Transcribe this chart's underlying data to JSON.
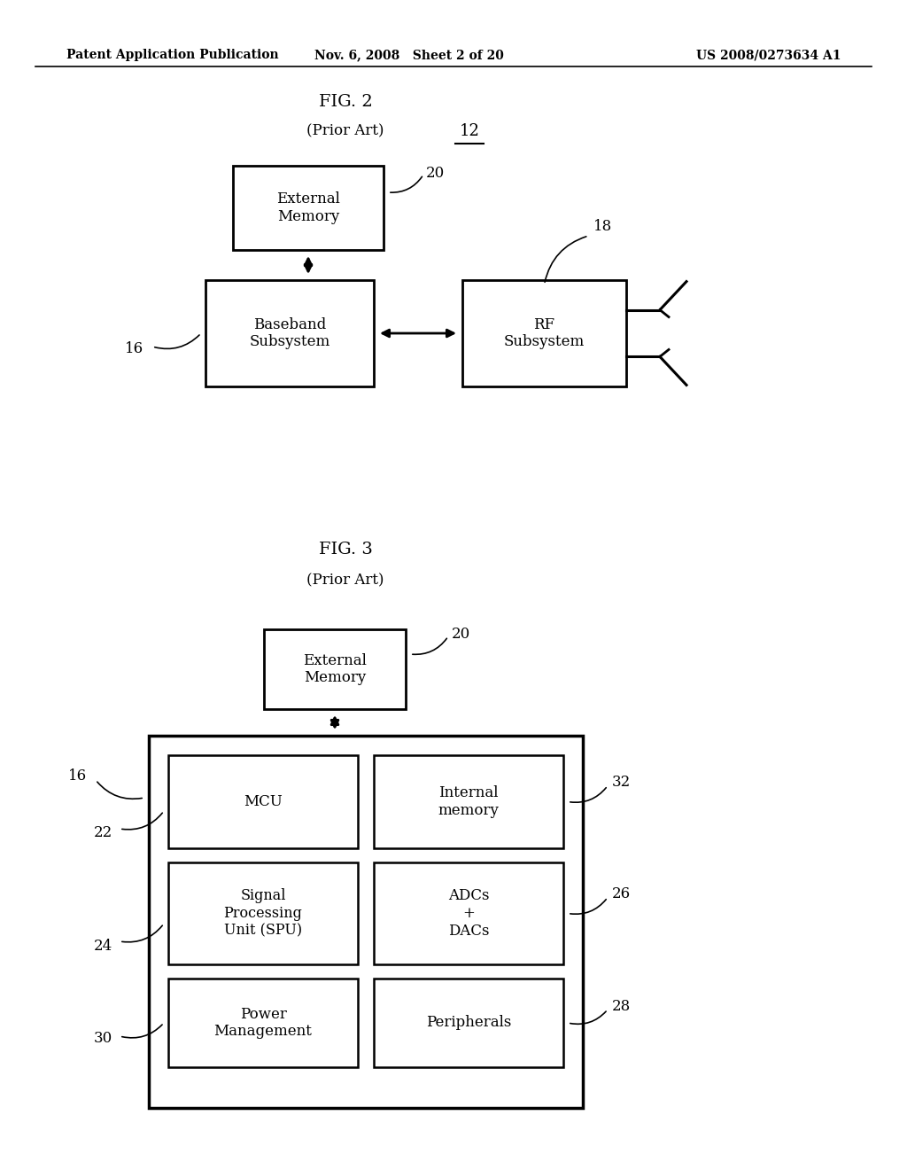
{
  "bg_color": "#ffffff",
  "header_left": "Patent Application Publication",
  "header_mid": "Nov. 6, 2008   Sheet 2 of 20",
  "header_right": "US 2008/0273634 A1",
  "text_color": "#000000",
  "fig2_title": "FIG. 2",
  "fig2_subtitle": "(Prior Art)",
  "fig2_label": "12",
  "fig3_title": "FIG. 3",
  "fig3_subtitle": "(Prior Art)"
}
